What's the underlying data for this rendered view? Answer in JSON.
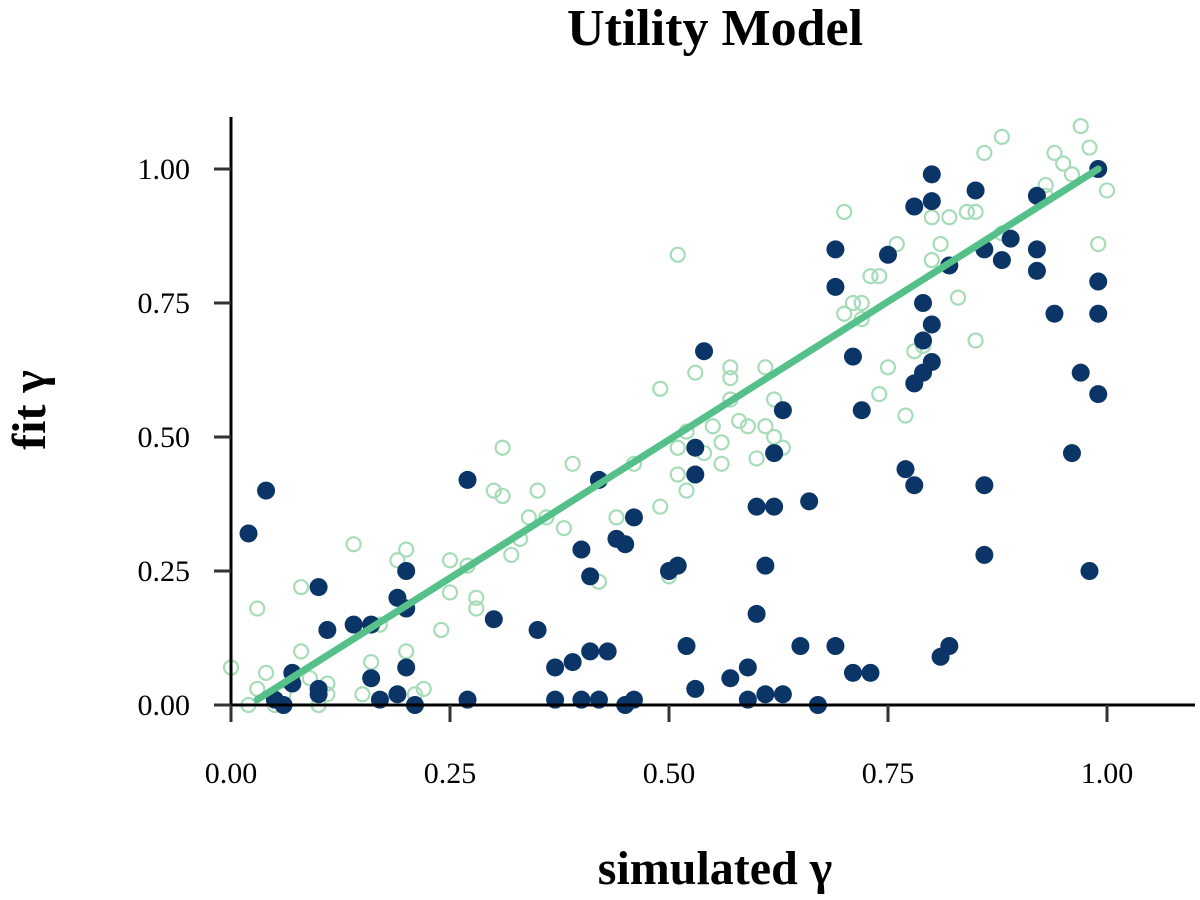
{
  "chart_data": {
    "type": "scatter",
    "title": "Utility Model",
    "xlabel": "simulated γ",
    "ylabel": "fit γ",
    "xlim": [
      0,
      1.1
    ],
    "ylim": [
      0,
      1.1
    ],
    "x_ticks": [
      "0.00",
      "0.25",
      "0.50",
      "0.75",
      "1.00"
    ],
    "y_ticks": [
      "0.00",
      "0.25",
      "0.50",
      "0.75",
      "1.00"
    ],
    "x_tick_values": [
      0,
      0.25,
      0.5,
      0.75,
      1.0
    ],
    "y_tick_values": [
      0,
      0.25,
      0.5,
      0.75,
      1.0
    ],
    "grid": false,
    "colors": {
      "filled": "#0b3566",
      "hollow": "#a6dcb7",
      "line": "#55c089"
    },
    "series": [
      {
        "style": "hollow-circle",
        "points": [
          [
            0.0,
            0.07
          ],
          [
            0.02,
            0.0
          ],
          [
            0.03,
            0.03
          ],
          [
            0.03,
            0.18
          ],
          [
            0.04,
            0.06
          ],
          [
            0.05,
            0.0
          ],
          [
            0.06,
            0.02
          ],
          [
            0.07,
            0.04
          ],
          [
            0.08,
            0.1
          ],
          [
            0.08,
            0.22
          ],
          [
            0.09,
            0.05
          ],
          [
            0.1,
            0.0
          ],
          [
            0.1,
            0.03
          ],
          [
            0.11,
            0.04
          ],
          [
            0.11,
            0.02
          ],
          [
            0.14,
            0.3
          ],
          [
            0.15,
            0.02
          ],
          [
            0.16,
            0.08
          ],
          [
            0.17,
            0.15
          ],
          [
            0.19,
            0.27
          ],
          [
            0.2,
            0.1
          ],
          [
            0.2,
            0.29
          ],
          [
            0.21,
            0.02
          ],
          [
            0.22,
            0.03
          ],
          [
            0.24,
            0.14
          ],
          [
            0.25,
            0.21
          ],
          [
            0.25,
            0.27
          ],
          [
            0.27,
            0.26
          ],
          [
            0.28,
            0.18
          ],
          [
            0.28,
            0.2
          ],
          [
            0.3,
            0.4
          ],
          [
            0.31,
            0.39
          ],
          [
            0.31,
            0.48
          ],
          [
            0.32,
            0.28
          ],
          [
            0.33,
            0.31
          ],
          [
            0.34,
            0.35
          ],
          [
            0.35,
            0.4
          ],
          [
            0.36,
            0.35
          ],
          [
            0.38,
            0.33
          ],
          [
            0.39,
            0.45
          ],
          [
            0.42,
            0.23
          ],
          [
            0.44,
            0.35
          ],
          [
            0.46,
            0.45
          ],
          [
            0.49,
            0.37
          ],
          [
            0.49,
            0.59
          ],
          [
            0.5,
            0.24
          ],
          [
            0.51,
            0.43
          ],
          [
            0.51,
            0.48
          ],
          [
            0.51,
            0.84
          ],
          [
            0.52,
            0.51
          ],
          [
            0.52,
            0.4
          ],
          [
            0.53,
            0.62
          ],
          [
            0.54,
            0.47
          ],
          [
            0.55,
            0.52
          ],
          [
            0.56,
            0.49
          ],
          [
            0.56,
            0.45
          ],
          [
            0.57,
            0.63
          ],
          [
            0.57,
            0.61
          ],
          [
            0.57,
            0.57
          ],
          [
            0.58,
            0.53
          ],
          [
            0.59,
            0.52
          ],
          [
            0.6,
            0.46
          ],
          [
            0.61,
            0.52
          ],
          [
            0.61,
            0.63
          ],
          [
            0.62,
            0.57
          ],
          [
            0.62,
            0.5
          ],
          [
            0.63,
            0.48
          ],
          [
            0.7,
            0.92
          ],
          [
            0.7,
            0.73
          ],
          [
            0.71,
            0.75
          ],
          [
            0.72,
            0.72
          ],
          [
            0.72,
            0.75
          ],
          [
            0.73,
            0.8
          ],
          [
            0.74,
            0.8
          ],
          [
            0.74,
            0.58
          ],
          [
            0.75,
            0.63
          ],
          [
            0.76,
            0.86
          ],
          [
            0.77,
            0.54
          ],
          [
            0.78,
            0.66
          ],
          [
            0.79,
            0.67
          ],
          [
            0.8,
            0.83
          ],
          [
            0.8,
            0.91
          ],
          [
            0.81,
            0.86
          ],
          [
            0.82,
            0.91
          ],
          [
            0.83,
            0.76
          ],
          [
            0.84,
            0.92
          ],
          [
            0.85,
            0.68
          ],
          [
            0.85,
            0.92
          ],
          [
            0.86,
            1.03
          ],
          [
            0.88,
            1.06
          ],
          [
            0.93,
            0.97
          ],
          [
            0.94,
            1.03
          ],
          [
            0.95,
            1.01
          ],
          [
            0.96,
            0.99
          ],
          [
            0.97,
            1.08
          ],
          [
            0.98,
            1.04
          ],
          [
            0.99,
            0.86
          ],
          [
            1.0,
            0.96
          ],
          [
            0.88,
            0.88
          ],
          [
            0.93,
            0.95
          ]
        ]
      },
      {
        "style": "filled-circle",
        "points": [
          [
            0.02,
            0.32
          ],
          [
            0.04,
            0.4
          ],
          [
            0.05,
            0.01
          ],
          [
            0.06,
            0.0
          ],
          [
            0.07,
            0.04
          ],
          [
            0.07,
            0.06
          ],
          [
            0.1,
            0.22
          ],
          [
            0.1,
            0.03
          ],
          [
            0.1,
            0.02
          ],
          [
            0.11,
            0.14
          ],
          [
            0.14,
            0.15
          ],
          [
            0.16,
            0.15
          ],
          [
            0.16,
            0.05
          ],
          [
            0.17,
            0.01
          ],
          [
            0.19,
            0.2
          ],
          [
            0.19,
            0.02
          ],
          [
            0.2,
            0.18
          ],
          [
            0.2,
            0.07
          ],
          [
            0.2,
            0.25
          ],
          [
            0.21,
            0.0
          ],
          [
            0.27,
            0.42
          ],
          [
            0.27,
            0.01
          ],
          [
            0.3,
            0.16
          ],
          [
            0.35,
            0.14
          ],
          [
            0.37,
            0.07
          ],
          [
            0.37,
            0.01
          ],
          [
            0.39,
            0.08
          ],
          [
            0.4,
            0.29
          ],
          [
            0.4,
            0.01
          ],
          [
            0.41,
            0.24
          ],
          [
            0.41,
            0.1
          ],
          [
            0.42,
            0.42
          ],
          [
            0.42,
            0.01
          ],
          [
            0.43,
            0.1
          ],
          [
            0.44,
            0.31
          ],
          [
            0.45,
            0.3
          ],
          [
            0.45,
            0.0
          ],
          [
            0.46,
            0.35
          ],
          [
            0.46,
            0.01
          ],
          [
            0.5,
            0.25
          ],
          [
            0.51,
            0.26
          ],
          [
            0.52,
            0.11
          ],
          [
            0.53,
            0.43
          ],
          [
            0.53,
            0.48
          ],
          [
            0.53,
            0.03
          ],
          [
            0.54,
            0.66
          ],
          [
            0.57,
            0.05
          ],
          [
            0.59,
            0.07
          ],
          [
            0.59,
            0.01
          ],
          [
            0.6,
            0.37
          ],
          [
            0.6,
            0.17
          ],
          [
            0.61,
            0.26
          ],
          [
            0.61,
            0.02
          ],
          [
            0.62,
            0.47
          ],
          [
            0.62,
            0.37
          ],
          [
            0.63,
            0.55
          ],
          [
            0.63,
            0.02
          ],
          [
            0.65,
            0.11
          ],
          [
            0.66,
            0.38
          ],
          [
            0.67,
            0.0
          ],
          [
            0.69,
            0.85
          ],
          [
            0.69,
            0.78
          ],
          [
            0.69,
            0.11
          ],
          [
            0.71,
            0.65
          ],
          [
            0.71,
            0.06
          ],
          [
            0.72,
            0.55
          ],
          [
            0.73,
            0.06
          ],
          [
            0.75,
            0.84
          ],
          [
            0.77,
            0.44
          ],
          [
            0.78,
            0.93
          ],
          [
            0.78,
            0.6
          ],
          [
            0.78,
            0.41
          ],
          [
            0.79,
            0.75
          ],
          [
            0.79,
            0.68
          ],
          [
            0.79,
            0.62
          ],
          [
            0.8,
            0.99
          ],
          [
            0.8,
            0.94
          ],
          [
            0.8,
            0.71
          ],
          [
            0.8,
            0.64
          ],
          [
            0.81,
            0.09
          ],
          [
            0.82,
            0.82
          ],
          [
            0.82,
            0.11
          ],
          [
            0.85,
            0.96
          ],
          [
            0.86,
            0.85
          ],
          [
            0.86,
            0.41
          ],
          [
            0.86,
            0.28
          ],
          [
            0.88,
            0.83
          ],
          [
            0.89,
            0.87
          ],
          [
            0.92,
            0.95
          ],
          [
            0.92,
            0.85
          ],
          [
            0.92,
            0.81
          ],
          [
            0.94,
            0.73
          ],
          [
            0.96,
            0.47
          ],
          [
            0.97,
            0.62
          ],
          [
            0.98,
            0.25
          ],
          [
            0.99,
            0.79
          ],
          [
            0.99,
            0.73
          ],
          [
            0.99,
            1.0
          ],
          [
            0.99,
            0.58
          ]
        ]
      }
    ],
    "fit_line": {
      "x": [
        0.03,
        0.99
      ],
      "y": [
        0.01,
        1.0
      ]
    }
  }
}
